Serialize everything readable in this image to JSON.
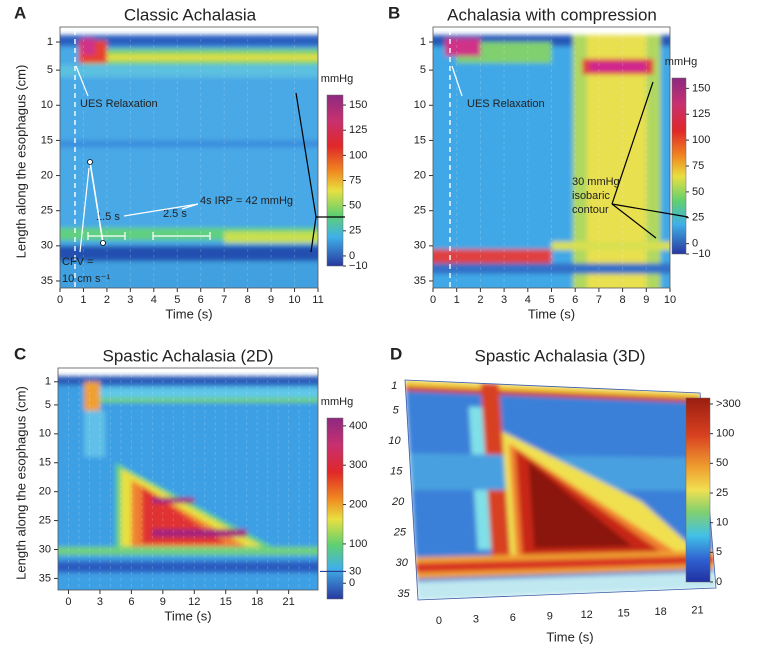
{
  "chart_data": [
    {
      "type": "heatmap",
      "panel": "A",
      "title": "Classic Achalasia",
      "xlabel": "Time (s)",
      "ylabel": "Length along the esophagus (cm)",
      "xlim": [
        0,
        11
      ],
      "xticks": [
        0,
        1,
        2,
        3,
        4,
        5,
        6,
        7,
        8,
        9,
        10,
        11
      ],
      "ylim": [
        0,
        36
      ],
      "yticks": [
        1,
        5,
        10,
        15,
        20,
        25,
        30,
        35
      ],
      "colorbar_label": "mmHg",
      "clim": [
        -10,
        160
      ],
      "cticks": [
        150,
        125,
        100,
        75,
        50,
        25,
        0,
        {
          "value": -10,
          "label": "−10"
        }
      ],
      "annotations": [
        "UES Relaxation",
        "4s IRP = 42 mmHg",
        "1.5 s",
        "2.5 s"
      ]
    },
    {
      "type": "heatmap",
      "panel": "B",
      "title": "Achalasia with compression",
      "xlabel": "Time (s)",
      "xlim": [
        0,
        10
      ],
      "xticks": [
        0,
        1,
        2,
        3,
        4,
        5,
        6,
        7,
        8,
        9,
        10
      ],
      "ylim": [
        0,
        36
      ],
      "yticks": [
        1,
        5,
        10,
        15,
        20,
        25,
        30,
        35
      ],
      "colorbar_label": "mmHg",
      "clim": [
        -10,
        160
      ],
      "cticks": [
        150,
        125,
        100,
        75,
        50,
        25,
        0,
        {
          "value": -10,
          "label": "−10"
        }
      ],
      "annotations": [
        "UES Relaxation",
        "30 mmHg",
        "isobaric",
        "contour"
      ]
    },
    {
      "type": "heatmap",
      "panel": "C",
      "title": "Spastic Achalasia (2D)",
      "xlabel": "Time (s)",
      "ylabel": "Length along the esophagus (cm)",
      "xlim": [
        -1,
        23.8
      ],
      "xticks": [
        0,
        3,
        6,
        9,
        12,
        15,
        18,
        21
      ],
      "ylim": [
        0,
        37
      ],
      "yticks": [
        1,
        5,
        10,
        15,
        20,
        25,
        30,
        35
      ],
      "colorbar_label": "mmHg",
      "clim": [
        -40,
        420
      ],
      "cticks": [
        400,
        300,
        200,
        100,
        0
      ],
      "contour": 30,
      "annotations": [
        "CFV =",
        "10 cm s⁻¹"
      ]
    },
    {
      "type": "heatmap3d",
      "panel": "D",
      "title": "Spastic Achalasia (3D)",
      "xlabel": "Time (s)",
      "xlim": [
        -1.7,
        22.5
      ],
      "xticks": [
        0,
        3,
        6,
        9,
        12,
        15,
        18,
        21
      ],
      "ylim": [
        0,
        36
      ],
      "yticks": [
        1,
        5,
        10,
        15,
        20,
        25,
        30,
        35
      ],
      "cticks": [
        {
          "value": 300,
          "label": ">300"
        },
        100,
        50,
        25,
        10,
        5,
        0
      ]
    }
  ]
}
